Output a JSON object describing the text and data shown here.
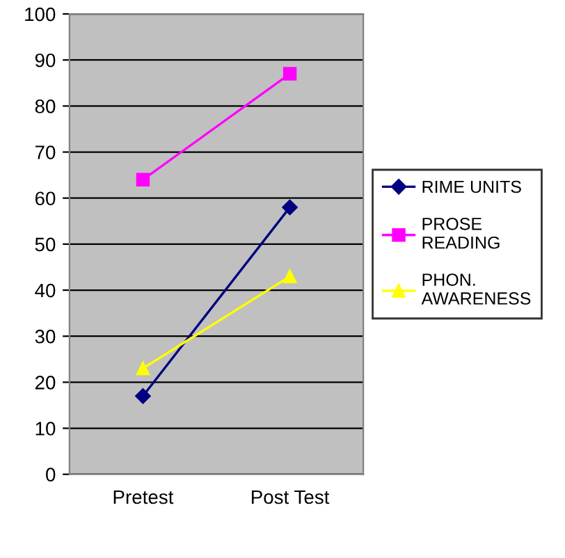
{
  "chart_data": {
    "type": "line",
    "categories": [
      "Pretest",
      "Post Test"
    ],
    "series": [
      {
        "name": "RIME UNITS",
        "color": "#000080",
        "marker": "diamond",
        "values": [
          17,
          58
        ]
      },
      {
        "name": "PROSE\nREADING",
        "color": "#ff00ff",
        "marker": "square",
        "values": [
          64,
          87
        ]
      },
      {
        "name": "PHON.\nAWARENESS",
        "color": "#ffff00",
        "marker": "triangle",
        "values": [
          23,
          43
        ]
      }
    ],
    "ylim": [
      0,
      100
    ],
    "yticks": [
      0,
      10,
      20,
      30,
      40,
      50,
      60,
      70,
      80,
      90,
      100
    ],
    "grid": "y",
    "legend": "right"
  }
}
